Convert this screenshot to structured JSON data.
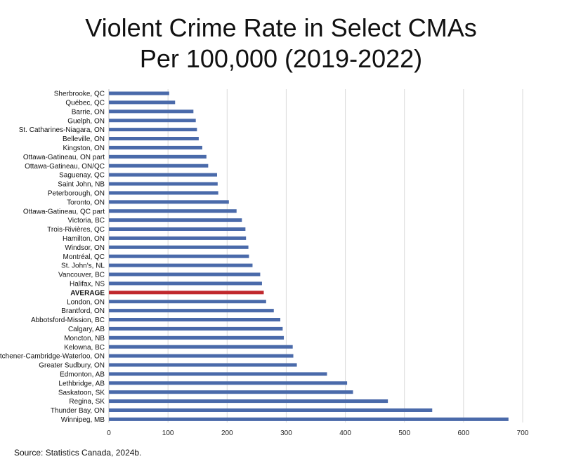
{
  "chart_data": {
    "type": "bar",
    "orientation": "horizontal",
    "title_lines": [
      "Violent Crime Rate in Select CMAs",
      "Per 100,000 (2019-2022)"
    ],
    "xlabel": "",
    "ylabel": "",
    "xlim": [
      0,
      700
    ],
    "x_ticks": [
      0,
      100,
      200,
      300,
      400,
      500,
      600,
      700
    ],
    "grid": true,
    "bar_color": "#4a6aaa",
    "highlight_color": "#c0282d",
    "highlight_category": "AVERAGE",
    "categories": [
      "Sherbrooke, QC",
      "Québec, QC",
      "Barrie, ON",
      "Guelph, ON",
      "St. Catharines-Niagara, ON",
      "Belleville, ON",
      "Kingston, ON",
      "Ottawa-Gatineau, ON part",
      "Ottawa-Gatineau, ON/QC",
      "Saguenay, QC",
      "Saint John, NB",
      "Peterborough, ON",
      "Toronto, ON",
      "Ottawa-Gatineau, QC part",
      "Victoria, BC",
      "Trois-Rivières, QC",
      "Hamilton, ON",
      "Windsor, ON",
      "Montréal, QC",
      "St. John's, NL",
      "Vancouver, BC",
      "Halifax, NS",
      "AVERAGE",
      "London, ON",
      "Brantford, ON",
      "Abbotsford-Mission, BC",
      "Calgary, AB",
      "Moncton, NB",
      "Kelowna, BC",
      "Kitchener-Cambridge-Waterloo, ON",
      "Greater Sudbury, ON",
      "Edmonton, AB",
      "Lethbridge, AB",
      "Saskatoon, SK",
      "Regina, SK",
      "Thunder Bay, ON",
      "Winnipeg, MB"
    ],
    "values": [
      102,
      112,
      143,
      147,
      149,
      152,
      158,
      165,
      168,
      183,
      184,
      185,
      203,
      216,
      225,
      231,
      232,
      236,
      237,
      243,
      256,
      259,
      262,
      266,
      279,
      290,
      294,
      296,
      311,
      312,
      318,
      369,
      403,
      413,
      472,
      547,
      676
    ],
    "source": "Source: Statistics Canada, 2024b."
  }
}
